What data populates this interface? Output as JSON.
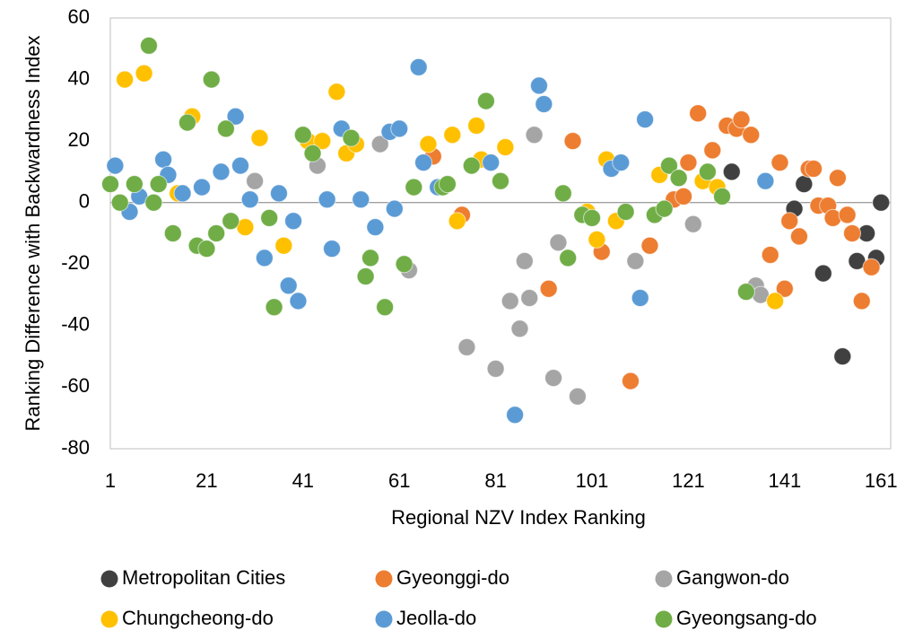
{
  "chart_data": {
    "type": "scatter",
    "x_label": "Regional NZV Index Ranking",
    "y_label": "Ranking Difference with Backwardness Index",
    "xlim": [
      1,
      163
    ],
    "xticks": [
      1,
      21,
      41,
      61,
      81,
      101,
      121,
      141,
      161
    ],
    "ylim": [
      -80,
      60
    ],
    "yticks": [
      -80,
      -60,
      -40,
      -20,
      0,
      20,
      40,
      60
    ],
    "grid": false,
    "legend": "bottom",
    "series": [
      {
        "name": "Metropolitan Cities",
        "color": "#404040",
        "x": [
          130,
          143,
          145,
          149,
          153,
          156,
          158,
          160,
          161
        ],
        "values": [
          10,
          -2,
          6,
          -23,
          -50,
          -19,
          -10,
          -18,
          0
        ]
      },
      {
        "name": "Gyeonggi-do",
        "color": "#ED7D31",
        "x": [
          68,
          74,
          92,
          97,
          103,
          109,
          113,
          118,
          120,
          121,
          123,
          126,
          129,
          131,
          132,
          134,
          138,
          140,
          141,
          142,
          144,
          146,
          147,
          148,
          150,
          151,
          152,
          154,
          155,
          157,
          159
        ],
        "values": [
          15,
          -4,
          -28,
          20,
          -16,
          -58,
          -14,
          1,
          2,
          13,
          29,
          17,
          25,
          24,
          27,
          22,
          -17,
          13,
          -28,
          -6,
          -11,
          11,
          11,
          -1,
          -1,
          -5,
          8,
          -4,
          -10,
          -32,
          -21
        ]
      },
      {
        "name": "Gangwon-do",
        "color": "#A5A5A5",
        "x": [
          31,
          44,
          57,
          63,
          75,
          81,
          84,
          86,
          87,
          88,
          89,
          93,
          94,
          98,
          110,
          122,
          135,
          136
        ],
        "values": [
          7,
          12,
          19,
          -22,
          -47,
          -54,
          -32,
          -41,
          -19,
          -31,
          22,
          -57,
          -13,
          -63,
          -19,
          -7,
          -27,
          -30
        ]
      },
      {
        "name": "Chungcheong-do",
        "color": "#FFC000",
        "x": [
          4,
          8,
          15,
          18,
          29,
          32,
          37,
          42,
          45,
          48,
          50,
          52,
          67,
          72,
          73,
          77,
          78,
          83,
          100,
          102,
          104,
          106,
          115,
          124,
          127,
          139
        ],
        "values": [
          40,
          42,
          3,
          28,
          -8,
          21,
          -14,
          20,
          20,
          36,
          16,
          19,
          19,
          22,
          -6,
          25,
          14,
          18,
          -3,
          -12,
          14,
          -6,
          9,
          7,
          5,
          -32
        ]
      },
      {
        "name": "Jeolla-do",
        "color": "#5B9BD5",
        "x": [
          2,
          5,
          7,
          12,
          13,
          16,
          20,
          24,
          27,
          28,
          30,
          33,
          36,
          38,
          39,
          40,
          46,
          47,
          49,
          53,
          56,
          59,
          60,
          61,
          65,
          66,
          69,
          80,
          85,
          90,
          91,
          105,
          107,
          111,
          112,
          137
        ],
        "values": [
          12,
          -3,
          2,
          14,
          9,
          3,
          5,
          10,
          28,
          12,
          1,
          -18,
          3,
          -27,
          -6,
          -32,
          1,
          -15,
          24,
          1,
          -8,
          23,
          -2,
          24,
          44,
          13,
          5,
          13,
          -69,
          38,
          32,
          11,
          13,
          -31,
          27,
          7
        ]
      },
      {
        "name": "Gyeongsang-do",
        "color": "#70AD47",
        "x": [
          1,
          3,
          6,
          9,
          10,
          11,
          14,
          17,
          19,
          21,
          22,
          23,
          25,
          26,
          34,
          35,
          41,
          43,
          51,
          54,
          55,
          58,
          62,
          64,
          70,
          71,
          76,
          79,
          82,
          95,
          96,
          99,
          101,
          108,
          114,
          116,
          117,
          119,
          125,
          128,
          133
        ],
        "values": [
          6,
          0,
          6,
          51,
          0,
          6,
          -10,
          26,
          -14,
          -15,
          40,
          -10,
          24,
          -6,
          -5,
          -34,
          22,
          16,
          21,
          -24,
          -18,
          -34,
          -20,
          5,
          5,
          6,
          12,
          33,
          7,
          3,
          -18,
          -4,
          -5,
          -3,
          -4,
          -2,
          12,
          8,
          10,
          2,
          -29
        ]
      }
    ]
  }
}
